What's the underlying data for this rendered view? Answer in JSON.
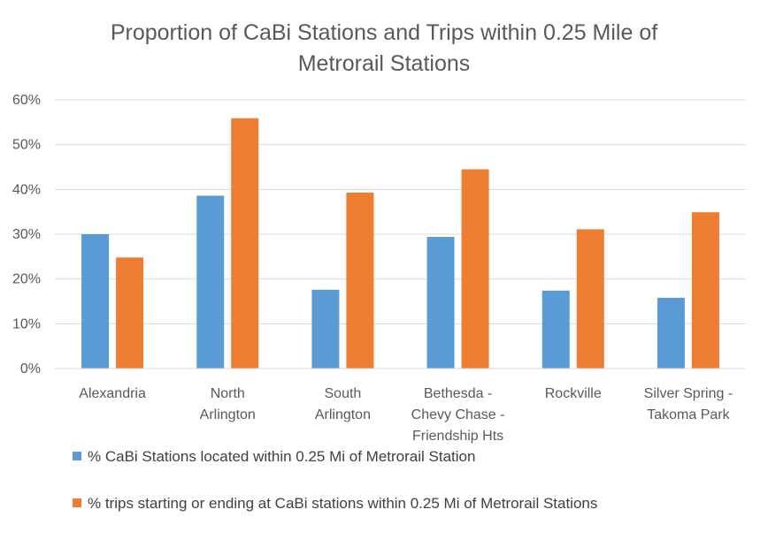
{
  "chart_data": {
    "type": "bar",
    "title": "Proportion of CaBi Stations and Trips within 0.25 Mile of Metrorail Stations",
    "title_lines": [
      "Proportion of CaBi Stations and Trips within 0.25 Mile of",
      "Metrorail Stations"
    ],
    "categories": [
      "Alexandria",
      "North Arlington",
      "South Arlington",
      "Bethesda - Chevy Chase - Friendship Hts",
      "Rockville",
      "Silver Spring - Takoma Park"
    ],
    "category_lines": [
      [
        "Alexandria"
      ],
      [
        "North",
        "Arlington"
      ],
      [
        "South",
        "Arlington"
      ],
      [
        "Bethesda -",
        "Chevy Chase -",
        "Friendship Hts"
      ],
      [
        "Rockville"
      ],
      [
        "Silver Spring -",
        "Takoma Park"
      ]
    ],
    "series": [
      {
        "name": "% CaBi Stations located within 0.25 Mi of Metrorail Station",
        "color": "#5b9bd5",
        "values": [
          0.3,
          0.386,
          0.176,
          0.294,
          0.174,
          0.158
        ]
      },
      {
        "name": "% trips starting or ending at CaBi stations within 0.25 Mi of Metrorail Stations",
        "color": "#ed7d31",
        "values": [
          0.248,
          0.559,
          0.393,
          0.445,
          0.311,
          0.349
        ]
      }
    ],
    "ylim": [
      0,
      0.6
    ],
    "yticks": [
      0,
      0.1,
      0.2,
      0.3,
      0.4,
      0.5,
      0.6
    ],
    "ytick_labels": [
      "0%",
      "10%",
      "20%",
      "30%",
      "40%",
      "50%",
      "60%"
    ],
    "xlabel": "",
    "ylabel": "",
    "grid": true,
    "legend_position": "bottom"
  }
}
